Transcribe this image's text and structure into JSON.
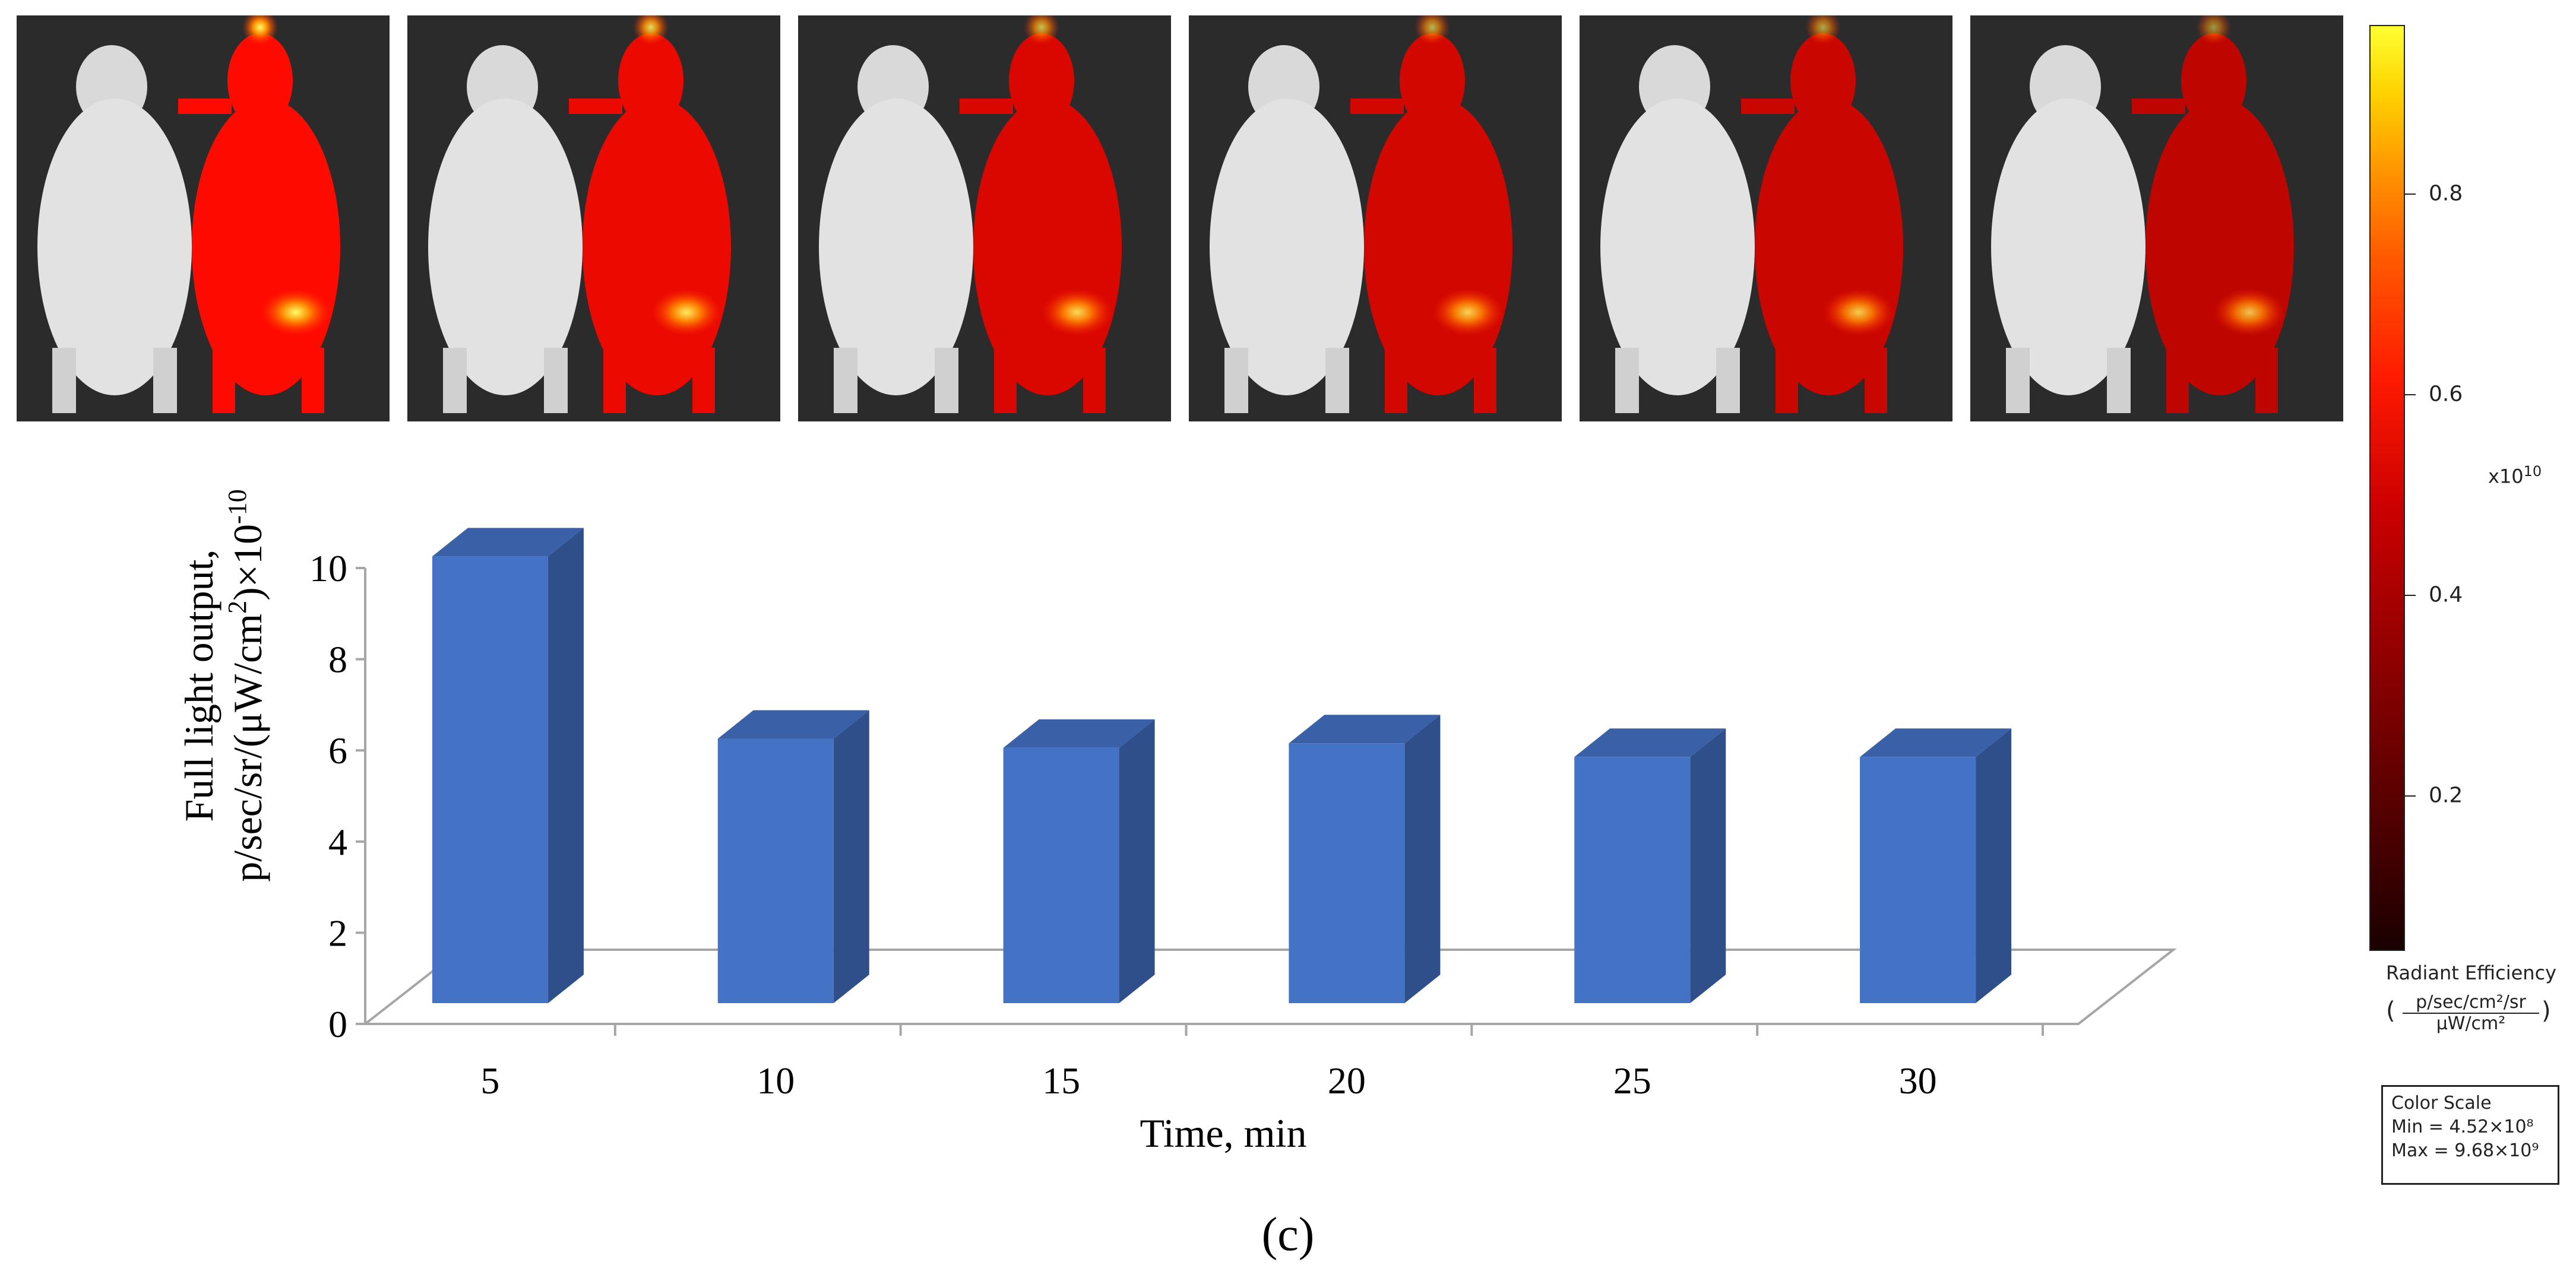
{
  "panels": {
    "count": 6,
    "intensities": [
      1.0,
      0.85,
      0.72,
      0.66,
      0.6,
      0.52
    ]
  },
  "chart_data": {
    "type": "bar",
    "categories": [
      "5",
      "10",
      "15",
      "20",
      "25",
      "30"
    ],
    "values": [
      9.8,
      5.8,
      5.6,
      5.7,
      5.4,
      5.4
    ],
    "ylim": [
      0,
      10
    ],
    "yticks": [
      "0",
      "2",
      "4",
      "6",
      "8",
      "10"
    ],
    "ylabel_line1": "Full light output,",
    "ylabel_line2": "p/sec/sr/(μW/cm",
    "ylabel_sup1": "2",
    "ylabel_mid": ")×10",
    "ylabel_sup2": "-10",
    "xlabel": "Time, min",
    "bar_color": "#4472c4",
    "bar_side_color": "#2f4f8a",
    "bar_top_color": "#3a60a8"
  },
  "caption": "(c)",
  "colorbar": {
    "ticks": [
      "0.2",
      "0.4",
      "0.6",
      "0.8"
    ],
    "tick_values": [
      0.2,
      0.4,
      0.6,
      0.8
    ],
    "range": [
      0.045,
      0.968
    ],
    "exponent_base": "x10",
    "exponent": "10",
    "label": "Radiant Efficiency",
    "unit_num": "p/sec/cm²/sr",
    "unit_den": "μW/cm²",
    "lparen": "(",
    "rparen": ")"
  },
  "color_scale": {
    "title": "Color Scale",
    "min": "Min = 4.52×10⁸",
    "max": "Max = 9.68×10⁹"
  }
}
